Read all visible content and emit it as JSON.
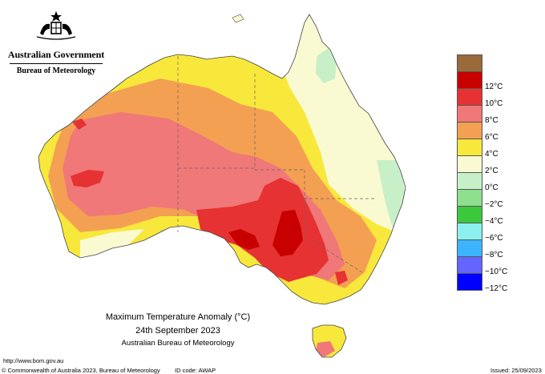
{
  "header": {
    "government": "Australian Government",
    "bureau": "Bureau of Meteorology"
  },
  "legend": {
    "items": [
      {
        "label": "",
        "color": "#9a6a3a"
      },
      {
        "label": "12°C",
        "color": "#c80000"
      },
      {
        "label": "10°C",
        "color": "#e63232"
      },
      {
        "label": "8°C",
        "color": "#f07878"
      },
      {
        "label": "6°C",
        "color": "#f4a052"
      },
      {
        "label": "4°C",
        "color": "#f8e83c"
      },
      {
        "label": "2°C",
        "color": "#fafad2"
      },
      {
        "label": "0°C",
        "color": "#c8f0c8"
      },
      {
        "label": "−2°C",
        "color": "#8ee08e"
      },
      {
        "label": "−4°C",
        "color": "#3cc83c"
      },
      {
        "label": "−6°C",
        "color": "#8cf0f0"
      },
      {
        "label": "−8°C",
        "color": "#3cb4ff"
      },
      {
        "label": "−10°C",
        "color": "#6464ff"
      },
      {
        "label": "−12°C",
        "color": "#0000ff"
      }
    ]
  },
  "title": {
    "line1": "Maximum Temperature Anomaly (°C)",
    "line2": "24th September 2023",
    "line3": "Australian Bureau of Meteorology"
  },
  "footer": {
    "url": "http://www.bom.gov.au",
    "copyright": "© Commonwealth of Australia 2023, Bureau of Meteorology",
    "id_code": "ID code: AWAP",
    "issued": "Issued: 25/09/2023"
  }
}
